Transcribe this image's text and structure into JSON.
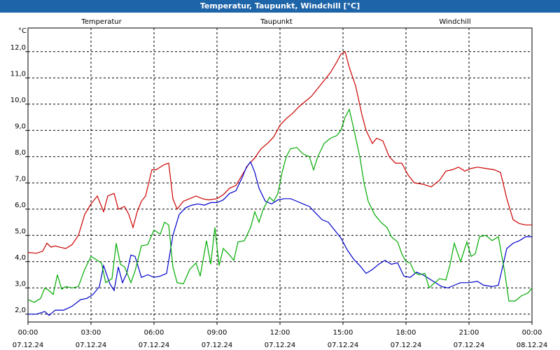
{
  "window": {
    "title": "Temperatur, Taupunkt, Windchill [°C]"
  },
  "chart_data": {
    "type": "line",
    "title": "Temperatur, Taupunkt, Windchill [°C]",
    "ylabel": "°C",
    "xlabel": "",
    "ylim": [
      1.7,
      12.9
    ],
    "xlim": [
      0,
      24
    ],
    "grid": true,
    "legend_placement": "top",
    "yticks": [
      2.0,
      3.0,
      4.0,
      5.0,
      6.0,
      7.0,
      8.0,
      9.0,
      10.0,
      11.0,
      12.0
    ],
    "ytick_labels": [
      "2,0",
      "3,0",
      "4,0",
      "5,0",
      "6,0",
      "7,0",
      "8,0",
      "9,0",
      "10,0",
      "11,0",
      "12,0"
    ],
    "xticks": [
      {
        "x": 0,
        "time": "00:00",
        "date": "07.12.24"
      },
      {
        "x": 3,
        "time": "03:00",
        "date": "07.12.24"
      },
      {
        "x": 6,
        "time": "06:00",
        "date": "07.12.24"
      },
      {
        "x": 9,
        "time": "09:00",
        "date": "07.12.24"
      },
      {
        "x": 12,
        "time": "12:00",
        "date": "07.12.24"
      },
      {
        "x": 15,
        "time": "15:00",
        "date": "07.12.24"
      },
      {
        "x": 18,
        "time": "18:00",
        "date": "07.12.24"
      },
      {
        "x": 21,
        "time": "21:00",
        "date": "07.12.24"
      },
      {
        "x": 24,
        "time": "00:00",
        "date": "08.12.24"
      }
    ],
    "series": [
      {
        "name": "Temperatur",
        "color": "#cc0000",
        "points": [
          [
            0,
            4.35
          ],
          [
            0.4,
            4.32
          ],
          [
            0.7,
            4.4
          ],
          [
            0.9,
            4.7
          ],
          [
            1.1,
            4.55
          ],
          [
            1.3,
            4.6
          ],
          [
            1.5,
            4.55
          ],
          [
            1.8,
            4.5
          ],
          [
            2.1,
            4.65
          ],
          [
            2.4,
            5.0
          ],
          [
            2.7,
            5.8
          ],
          [
            3.0,
            6.2
          ],
          [
            3.3,
            6.5
          ],
          [
            3.6,
            5.9
          ],
          [
            3.8,
            6.5
          ],
          [
            4.1,
            6.6
          ],
          [
            4.3,
            6.0
          ],
          [
            4.6,
            6.1
          ],
          [
            4.8,
            5.8
          ],
          [
            5.0,
            5.3
          ],
          [
            5.2,
            5.9
          ],
          [
            5.4,
            6.3
          ],
          [
            5.6,
            6.5
          ],
          [
            5.9,
            7.5
          ],
          [
            6.1,
            7.5
          ],
          [
            6.3,
            7.6
          ],
          [
            6.5,
            7.7
          ],
          [
            6.7,
            7.75
          ],
          [
            6.9,
            6.4
          ],
          [
            7.1,
            6.0
          ],
          [
            7.4,
            6.3
          ],
          [
            7.7,
            6.4
          ],
          [
            8.0,
            6.5
          ],
          [
            8.3,
            6.4
          ],
          [
            8.6,
            6.35
          ],
          [
            9.0,
            6.4
          ],
          [
            9.3,
            6.55
          ],
          [
            9.6,
            6.8
          ],
          [
            9.9,
            6.9
          ],
          [
            10.2,
            7.3
          ],
          [
            10.5,
            7.7
          ],
          [
            10.8,
            7.95
          ],
          [
            11.1,
            8.3
          ],
          [
            11.4,
            8.5
          ],
          [
            11.7,
            8.75
          ],
          [
            12.0,
            9.2
          ],
          [
            12.3,
            9.45
          ],
          [
            12.6,
            9.65
          ],
          [
            12.9,
            9.9
          ],
          [
            13.2,
            10.1
          ],
          [
            13.5,
            10.3
          ],
          [
            13.8,
            10.6
          ],
          [
            14.1,
            10.9
          ],
          [
            14.4,
            11.2
          ],
          [
            14.7,
            11.6
          ],
          [
            14.9,
            11.9
          ],
          [
            15.1,
            12.0
          ],
          [
            15.3,
            11.4
          ],
          [
            15.6,
            10.7
          ],
          [
            15.9,
            9.6
          ],
          [
            16.1,
            9.0
          ],
          [
            16.4,
            8.5
          ],
          [
            16.6,
            8.7
          ],
          [
            16.9,
            8.6
          ],
          [
            17.2,
            8.0
          ],
          [
            17.5,
            7.75
          ],
          [
            17.8,
            7.75
          ],
          [
            18.1,
            7.3
          ],
          [
            18.4,
            7.0
          ],
          [
            18.8,
            6.95
          ],
          [
            19.2,
            6.85
          ],
          [
            19.6,
            7.1
          ],
          [
            19.9,
            7.45
          ],
          [
            20.2,
            7.5
          ],
          [
            20.5,
            7.6
          ],
          [
            20.8,
            7.45
          ],
          [
            21.1,
            7.55
          ],
          [
            21.4,
            7.6
          ],
          [
            21.8,
            7.55
          ],
          [
            22.2,
            7.5
          ],
          [
            22.5,
            7.4
          ],
          [
            22.8,
            6.4
          ],
          [
            23.1,
            5.6
          ],
          [
            23.4,
            5.45
          ],
          [
            23.7,
            5.4
          ],
          [
            24.0,
            5.4
          ]
        ]
      },
      {
        "name": "Taupunkt",
        "color": "#0000cc",
        "points": [
          [
            0,
            2.0
          ],
          [
            0.4,
            2.0
          ],
          [
            0.8,
            2.1
          ],
          [
            1.0,
            1.95
          ],
          [
            1.3,
            2.15
          ],
          [
            1.7,
            2.15
          ],
          [
            2.1,
            2.3
          ],
          [
            2.5,
            2.55
          ],
          [
            2.8,
            2.6
          ],
          [
            3.1,
            2.75
          ],
          [
            3.4,
            3.05
          ],
          [
            3.6,
            3.85
          ],
          [
            3.9,
            3.15
          ],
          [
            4.1,
            2.9
          ],
          [
            4.3,
            3.8
          ],
          [
            4.5,
            3.2
          ],
          [
            4.7,
            3.55
          ],
          [
            4.9,
            4.25
          ],
          [
            5.1,
            4.2
          ],
          [
            5.4,
            3.4
          ],
          [
            5.7,
            3.5
          ],
          [
            6.0,
            3.4
          ],
          [
            6.3,
            3.45
          ],
          [
            6.6,
            3.55
          ],
          [
            6.9,
            5.0
          ],
          [
            7.2,
            5.8
          ],
          [
            7.5,
            6.05
          ],
          [
            7.8,
            6.15
          ],
          [
            8.1,
            6.2
          ],
          [
            8.4,
            6.15
          ],
          [
            8.7,
            6.25
          ],
          [
            9.0,
            6.25
          ],
          [
            9.3,
            6.35
          ],
          [
            9.6,
            6.6
          ],
          [
            9.9,
            6.7
          ],
          [
            10.2,
            7.2
          ],
          [
            10.4,
            7.6
          ],
          [
            10.6,
            7.8
          ],
          [
            10.8,
            7.4
          ],
          [
            11.0,
            6.8
          ],
          [
            11.3,
            6.3
          ],
          [
            11.6,
            6.2
          ],
          [
            11.9,
            6.35
          ],
          [
            12.2,
            6.4
          ],
          [
            12.5,
            6.4
          ],
          [
            12.8,
            6.3
          ],
          [
            13.1,
            6.2
          ],
          [
            13.4,
            6.1
          ],
          [
            13.7,
            5.85
          ],
          [
            14.0,
            5.6
          ],
          [
            14.3,
            5.5
          ],
          [
            14.6,
            5.2
          ],
          [
            14.9,
            4.9
          ],
          [
            15.2,
            4.45
          ],
          [
            15.5,
            4.1
          ],
          [
            15.8,
            3.85
          ],
          [
            16.1,
            3.55
          ],
          [
            16.4,
            3.7
          ],
          [
            16.7,
            3.9
          ],
          [
            17.0,
            4.05
          ],
          [
            17.3,
            3.9
          ],
          [
            17.6,
            3.95
          ],
          [
            17.9,
            3.45
          ],
          [
            18.2,
            3.4
          ],
          [
            18.5,
            3.6
          ],
          [
            18.8,
            3.5
          ],
          [
            19.1,
            3.35
          ],
          [
            19.4,
            3.2
          ],
          [
            19.7,
            3.05
          ],
          [
            20.0,
            3.0
          ],
          [
            20.3,
            3.1
          ],
          [
            20.6,
            3.2
          ],
          [
            21.0,
            3.2
          ],
          [
            21.4,
            3.25
          ],
          [
            21.7,
            3.1
          ],
          [
            22.1,
            3.05
          ],
          [
            22.4,
            3.1
          ],
          [
            22.6,
            3.8
          ],
          [
            22.8,
            4.5
          ],
          [
            23.1,
            4.7
          ],
          [
            23.4,
            4.8
          ],
          [
            23.7,
            4.95
          ],
          [
            24.0,
            4.95
          ]
        ]
      },
      {
        "name": "Windchill",
        "color": "#00aa00",
        "points": [
          [
            0,
            2.55
          ],
          [
            0.3,
            2.45
          ],
          [
            0.6,
            2.6
          ],
          [
            0.8,
            3.0
          ],
          [
            1.0,
            2.9
          ],
          [
            1.2,
            2.75
          ],
          [
            1.4,
            3.5
          ],
          [
            1.6,
            2.95
          ],
          [
            1.8,
            3.05
          ],
          [
            2.1,
            3.0
          ],
          [
            2.4,
            3.05
          ],
          [
            2.7,
            3.7
          ],
          [
            3.0,
            4.2
          ],
          [
            3.3,
            4.05
          ],
          [
            3.5,
            3.95
          ],
          [
            3.7,
            3.2
          ],
          [
            4.0,
            3.35
          ],
          [
            4.2,
            4.7
          ],
          [
            4.4,
            3.9
          ],
          [
            4.6,
            3.8
          ],
          [
            4.9,
            3.2
          ],
          [
            5.1,
            3.65
          ],
          [
            5.4,
            4.6
          ],
          [
            5.7,
            4.65
          ],
          [
            6.0,
            5.2
          ],
          [
            6.3,
            5.05
          ],
          [
            6.5,
            5.5
          ],
          [
            6.7,
            5.4
          ],
          [
            6.9,
            3.8
          ],
          [
            7.1,
            3.2
          ],
          [
            7.4,
            3.15
          ],
          [
            7.7,
            3.7
          ],
          [
            8.0,
            3.95
          ],
          [
            8.2,
            3.45
          ],
          [
            8.5,
            4.8
          ],
          [
            8.7,
            3.9
          ],
          [
            8.9,
            5.3
          ],
          [
            9.1,
            3.85
          ],
          [
            9.3,
            4.5
          ],
          [
            9.6,
            4.25
          ],
          [
            9.8,
            4.05
          ],
          [
            10.0,
            4.75
          ],
          [
            10.3,
            4.8
          ],
          [
            10.6,
            5.3
          ],
          [
            10.8,
            5.9
          ],
          [
            11.0,
            5.5
          ],
          [
            11.2,
            6.0
          ],
          [
            11.5,
            6.45
          ],
          [
            11.7,
            6.3
          ],
          [
            11.9,
            6.6
          ],
          [
            12.1,
            7.4
          ],
          [
            12.3,
            8.0
          ],
          [
            12.5,
            8.3
          ],
          [
            12.8,
            8.35
          ],
          [
            13.1,
            8.1
          ],
          [
            13.4,
            8.0
          ],
          [
            13.6,
            7.5
          ],
          [
            13.8,
            8.0
          ],
          [
            14.1,
            8.5
          ],
          [
            14.4,
            8.7
          ],
          [
            14.7,
            8.8
          ],
          [
            14.9,
            9.0
          ],
          [
            15.1,
            9.5
          ],
          [
            15.3,
            9.8
          ],
          [
            15.5,
            9.1
          ],
          [
            15.8,
            8.0
          ],
          [
            16.0,
            7.0
          ],
          [
            16.2,
            6.3
          ],
          [
            16.5,
            5.8
          ],
          [
            16.8,
            5.5
          ],
          [
            17.1,
            5.3
          ],
          [
            17.3,
            4.95
          ],
          [
            17.6,
            4.75
          ],
          [
            17.8,
            4.3
          ],
          [
            18.0,
            4.0
          ],
          [
            18.2,
            3.95
          ],
          [
            18.4,
            3.6
          ],
          [
            18.6,
            3.5
          ],
          [
            18.9,
            3.55
          ],
          [
            19.1,
            3.0
          ],
          [
            19.3,
            3.15
          ],
          [
            19.6,
            3.35
          ],
          [
            19.9,
            3.3
          ],
          [
            20.1,
            3.9
          ],
          [
            20.3,
            4.7
          ],
          [
            20.6,
            4.0
          ],
          [
            20.9,
            4.75
          ],
          [
            21.1,
            4.2
          ],
          [
            21.3,
            4.3
          ],
          [
            21.5,
            4.95
          ],
          [
            21.8,
            5.0
          ],
          [
            22.1,
            4.8
          ],
          [
            22.4,
            4.95
          ],
          [
            22.7,
            3.6
          ],
          [
            22.9,
            2.5
          ],
          [
            23.2,
            2.5
          ],
          [
            23.5,
            2.7
          ],
          [
            23.8,
            2.8
          ],
          [
            24.0,
            3.0
          ]
        ]
      }
    ]
  }
}
